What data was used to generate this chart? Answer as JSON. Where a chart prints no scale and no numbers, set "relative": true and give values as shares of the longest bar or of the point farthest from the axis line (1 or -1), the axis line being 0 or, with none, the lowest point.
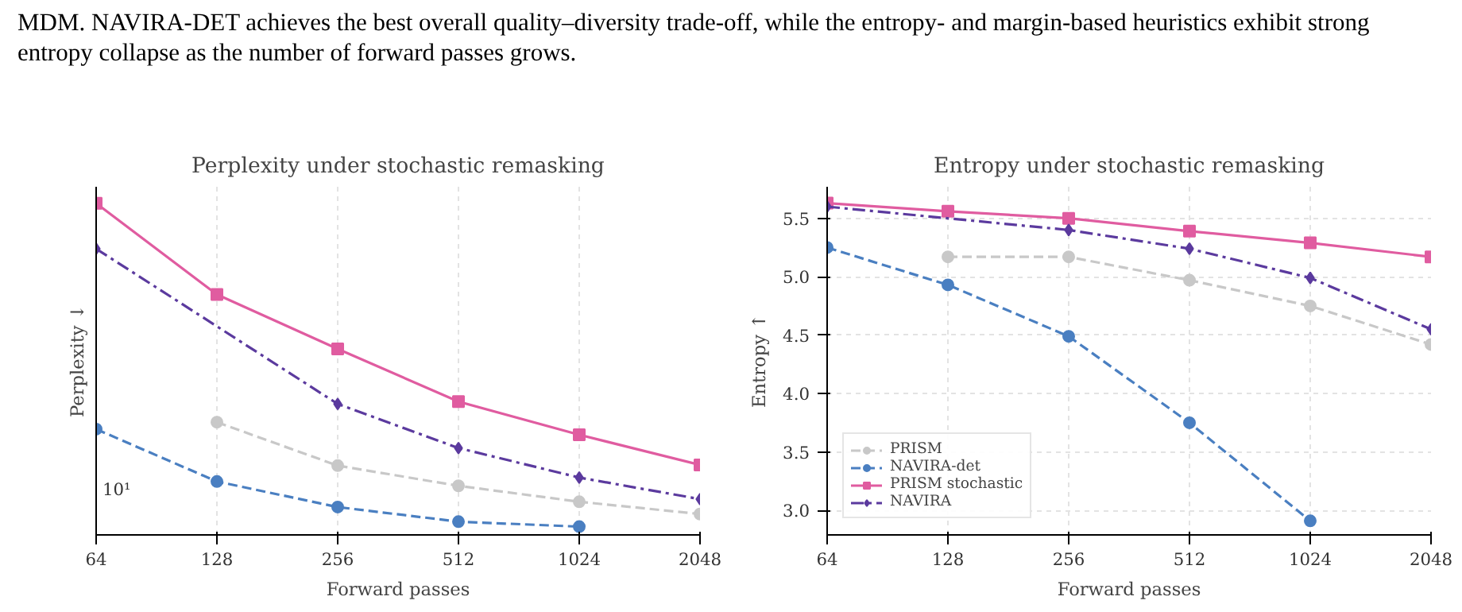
{
  "chart_data": [
    {
      "type": "line",
      "title": "Perplexity under stochastic remasking",
      "xlabel": "Forward passes",
      "ylabel": "Perplexity ↓",
      "log": "x",
      "grid": true,
      "legend": false,
      "annotations": [
        "MDM. NAVIRA-DET achieves the best overall quality–diversity trade-off, while the entropy- and margin-based heuristics exhibit strong entropy collapse as the number of forward passes grows.",
        "10¹"
      ],
      "xlim": [
        64,
        2048
      ],
      "xticks": [
        64,
        128,
        256,
        512,
        1024,
        2048
      ],
      "relative": true,
      "series": [
        {
          "color": "#c8c8c8",
          "marker": "circle",
          "line_style": "dashed",
          "x": [
            128,
            256,
            512,
            1024,
            2048
          ],
          "values": [
            0.34,
            0.209,
            0.148,
            0.1,
            0.063
          ]
        },
        {
          "color": "#4a7fc1",
          "marker": "circle",
          "line_style": "dashed",
          "x": [
            64,
            128,
            256,
            512,
            1024
          ],
          "values": [
            0.319,
            0.161,
            0.084,
            0.04,
            0.025
          ]
        },
        {
          "color": "#e05ca0",
          "marker": "square",
          "line_style": "solid",
          "x": [
            64,
            128,
            256,
            512,
            1024,
            2048
          ],
          "values": [
            1,
            0.725,
            0.561,
            0.402,
            0.302,
            0.211
          ]
        },
        {
          "color": "#5b3a9e",
          "marker": "diamond",
          "line_style": "dashdot",
          "x": [
            64,
            256,
            512,
            1024,
            2048
          ],
          "values": [
            0.863,
            0.395,
            0.262,
            0.173,
            0.108
          ]
        }
      ]
    },
    {
      "type": "line",
      "title": "Entropy under stochastic remasking",
      "xlabel": "Forward passes",
      "ylabel": "Entropy ↑",
      "log": "x",
      "grid": true,
      "legend": "bottom left",
      "xlim": [
        64,
        2048
      ],
      "xticks": [
        64,
        128,
        256,
        512,
        1024,
        2048
      ],
      "ylim": [
        2.79,
        5.77
      ],
      "yticks": [
        {
          "value": 3.0,
          "label": "3.0"
        },
        3.5,
        {
          "value": 4.0,
          "label": "4.0"
        },
        4.5,
        {
          "value": 5.0,
          "label": "5.0"
        },
        5.5
      ],
      "series": [
        {
          "name": "PRISM",
          "color": "#c8c8c8",
          "marker": "circle",
          "line_style": "dashed",
          "x": [
            128,
            256,
            512,
            1024,
            2048
          ],
          "values": [
            5.17,
            5.17,
            4.97,
            4.75,
            4.42
          ]
        },
        {
          "name": "NAVIRA-det",
          "color": "#4a7fc1",
          "marker": "circle",
          "line_style": "dashed",
          "x": [
            64,
            128,
            256,
            512,
            1024
          ],
          "values": [
            5.25,
            4.93,
            4.49,
            3.75,
            2.91
          ]
        },
        {
          "name": "PRISM stochastic",
          "color": "#e05ca0",
          "marker": "square",
          "line_style": "solid",
          "x": [
            64,
            128,
            256,
            512,
            1024,
            2048
          ],
          "values": [
            5.63,
            5.56,
            5.5,
            5.39,
            5.29,
            5.17
          ]
        },
        {
          "name": "NAVIRA",
          "color": "#5b3a9e",
          "marker": "diamond",
          "line_style": "dashdot",
          "x": [
            64,
            256,
            512,
            1024,
            2048
          ],
          "values": [
            5.6,
            5.4,
            5.24,
            4.99,
            4.55
          ]
        }
      ]
    }
  ]
}
